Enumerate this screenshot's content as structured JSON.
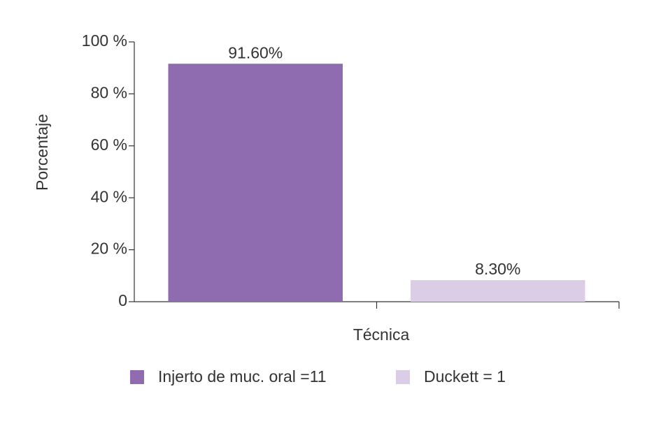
{
  "chart_data": {
    "type": "bar",
    "x_label": "Técnica",
    "y_label": "Porcentaje",
    "categories": [
      "Injerto de muc. oral =11",
      "Duckett = 1"
    ],
    "values": [
      91.6,
      8.3
    ],
    "value_labels": [
      "91.60%",
      "8.30%"
    ],
    "colors": [
      "#8e6caf",
      "#dccde6"
    ],
    "ylim": [
      0,
      100
    ],
    "yticks": [
      0,
      {
        "value": 20,
        "label": "20 %"
      },
      {
        "value": 40,
        "label": "40 %"
      },
      {
        "value": 60,
        "label": "60 %"
      },
      {
        "value": 80,
        "label": "80 %"
      },
      {
        "value": 100,
        "label": "100 %"
      }
    ],
    "grid": false,
    "legend": "bottom"
  }
}
